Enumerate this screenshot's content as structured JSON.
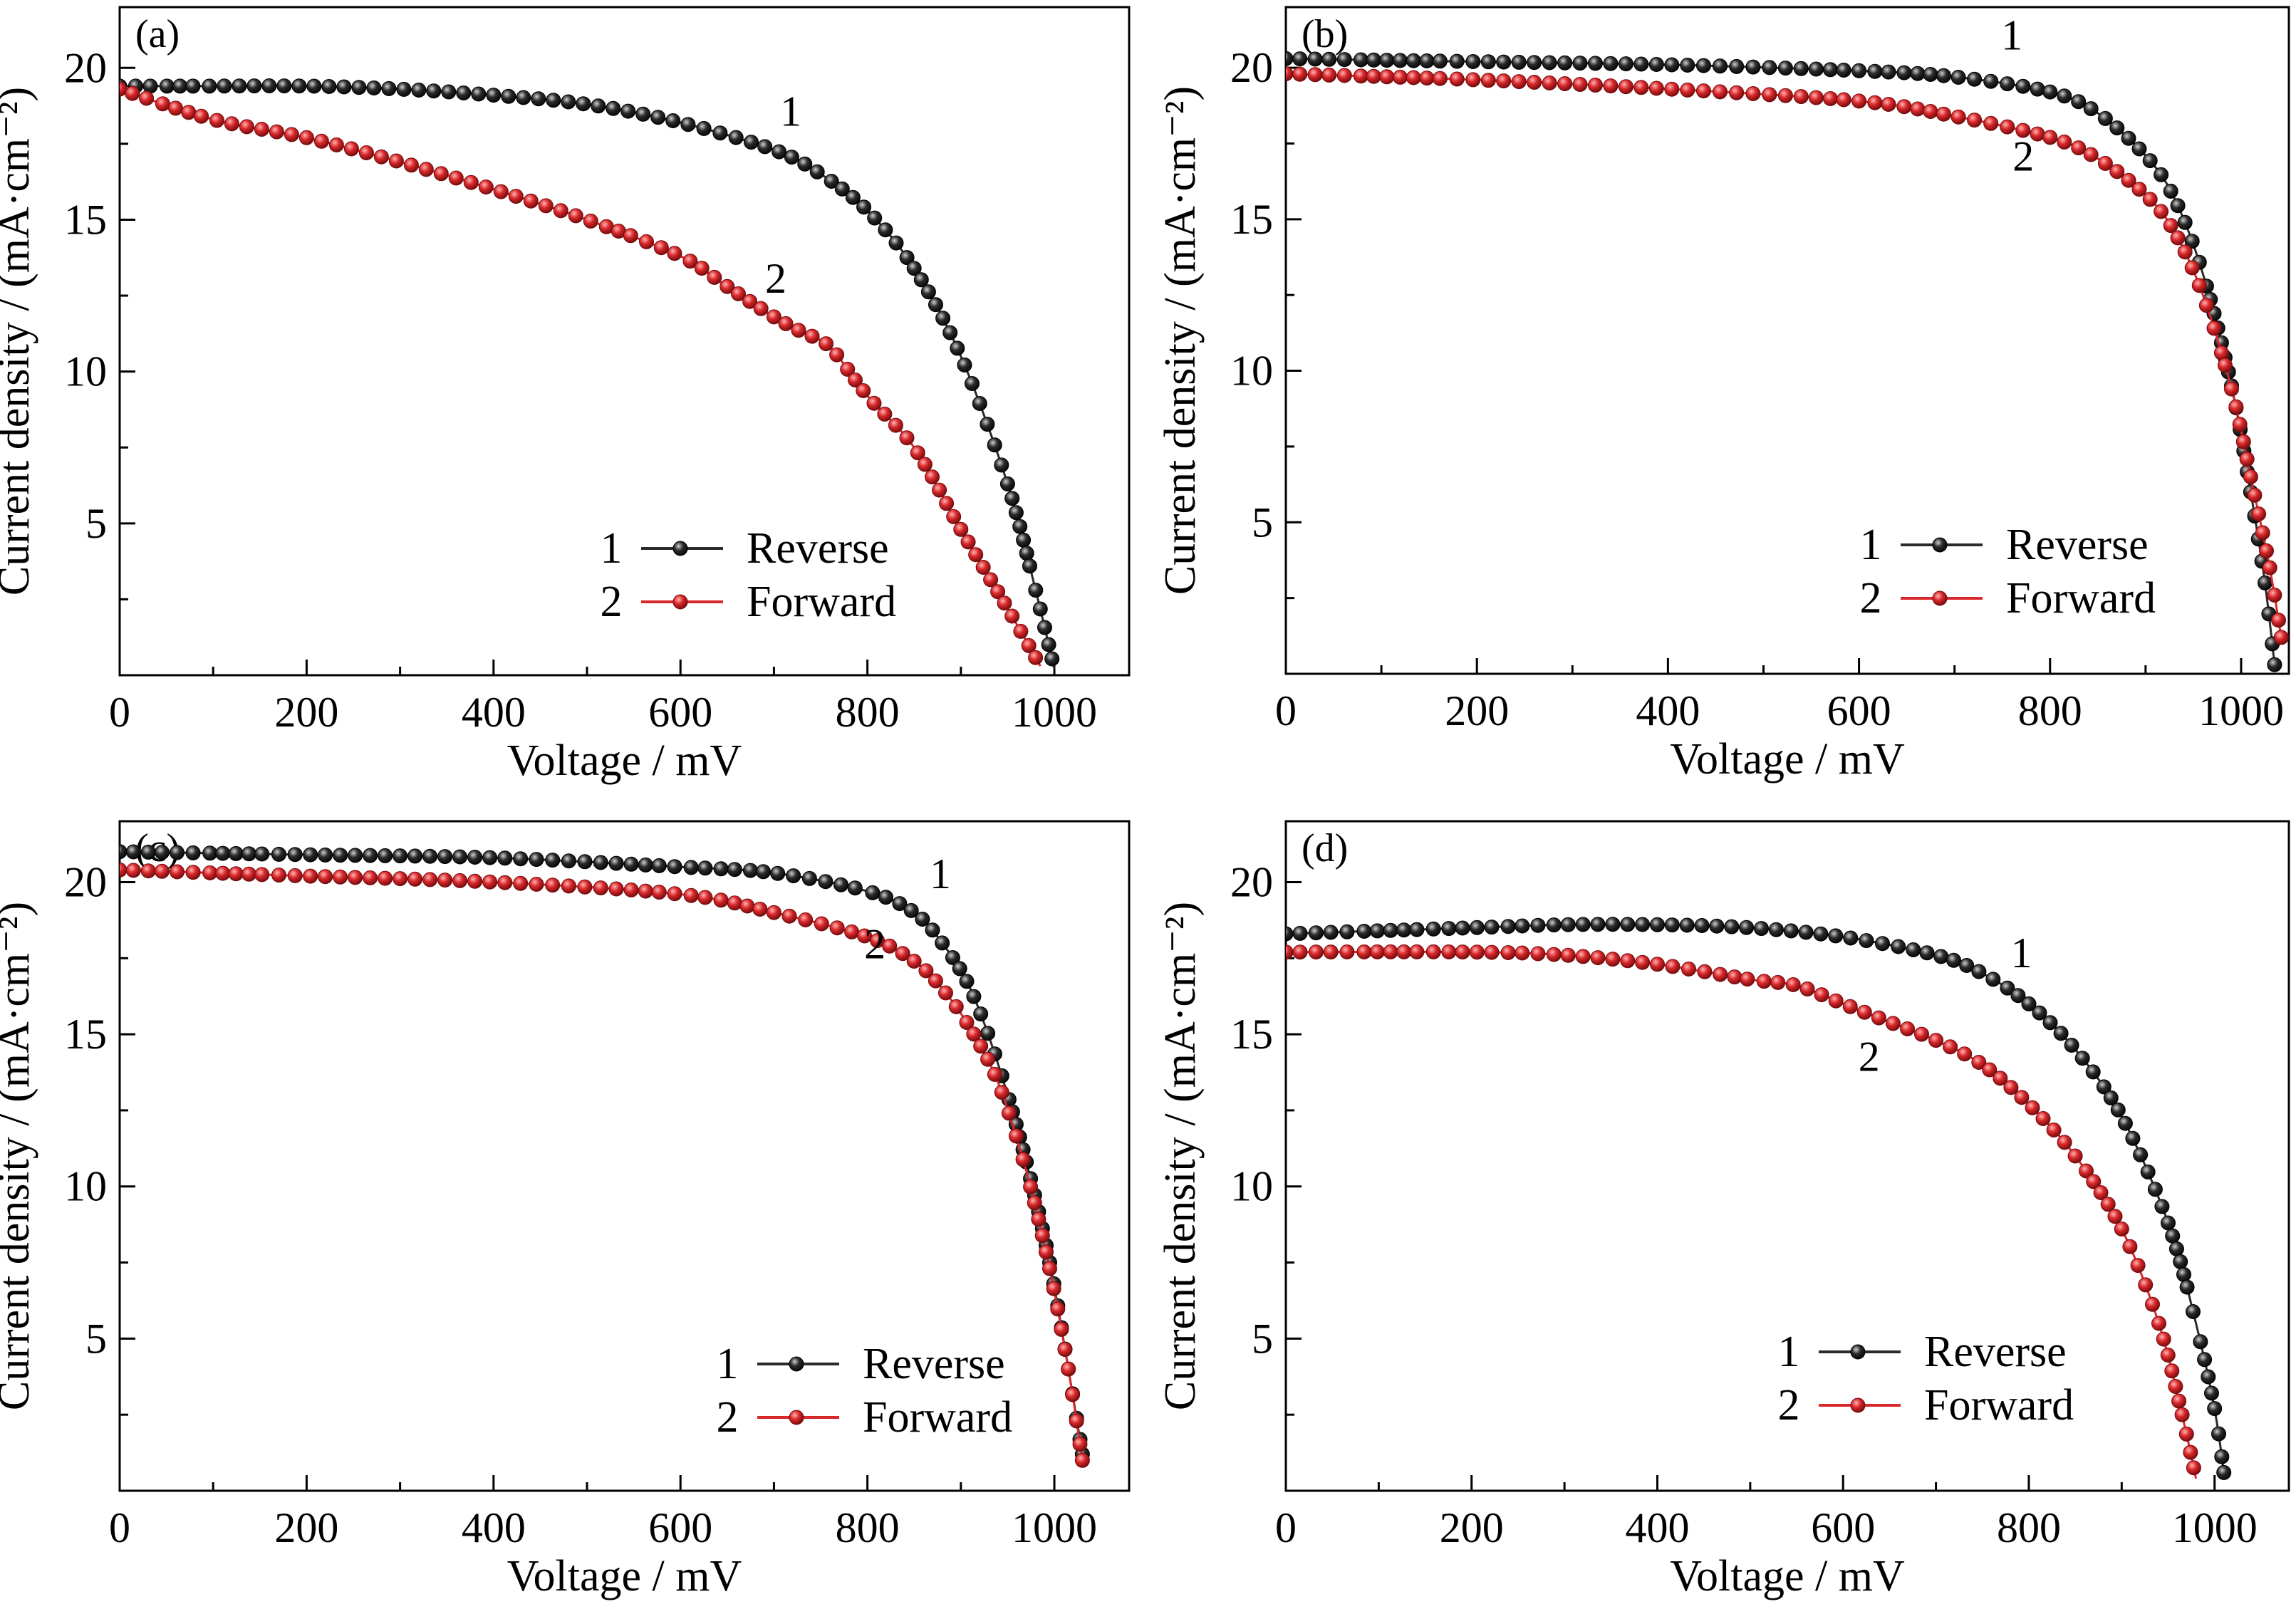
{
  "colors": {
    "reverse": "#2b2b2b",
    "forward": "#d9282b",
    "axis": "#000000"
  },
  "chart_data": [
    {
      "type": "line",
      "tag": "(a)",
      "xlabel": "Voltage / mV",
      "ylabel": "Current density / (mA·cm⁻²)",
      "xlim": [
        0,
        1080
      ],
      "ylim": [
        0,
        22
      ],
      "xticks": [
        0,
        200,
        400,
        600,
        800,
        1000
      ],
      "xtick_labels": [
        "0",
        "200",
        "400",
        "600",
        "800",
        "1000"
      ],
      "yticks": [
        5,
        10,
        15,
        20
      ],
      "ytick_labels": [
        "5",
        "10",
        "15",
        "20"
      ],
      "legend_placement": "bottom-right",
      "series": [
        {
          "name": "Reverse",
          "legend_num": "1",
          "curve_label": "1",
          "curve_label_at": [
            718,
            18.1
          ],
          "points": [
            [
              0,
              19.4
            ],
            [
              100,
              19.4
            ],
            [
              200,
              19.4
            ],
            [
              300,
              19.3
            ],
            [
              400,
              19.1
            ],
            [
              500,
              18.8
            ],
            [
              600,
              18.2
            ],
            [
              700,
              17.3
            ],
            [
              750,
              16.5
            ],
            [
              800,
              15.3
            ],
            [
              850,
              13.4
            ],
            [
              900,
              10.5
            ],
            [
              950,
              6.3
            ],
            [
              980,
              2.8
            ],
            [
              1000,
              0.2
            ]
          ]
        },
        {
          "name": "Forward",
          "legend_num": "2",
          "curve_label": "2",
          "curve_label_at": [
            702,
            12.6
          ],
          "points": [
            [
              0,
              19.3
            ],
            [
              100,
              18.3
            ],
            [
              200,
              17.7
            ],
            [
              300,
              16.9
            ],
            [
              400,
              16.0
            ],
            [
              500,
              15.0
            ],
            [
              600,
              13.8
            ],
            [
              650,
              12.8
            ],
            [
              700,
              11.8
            ],
            [
              730,
              11.3
            ],
            [
              760,
              10.8
            ],
            [
              800,
              9.2
            ],
            [
              850,
              7.5
            ],
            [
              900,
              4.8
            ],
            [
              950,
              2.2
            ],
            [
              985,
              0.3
            ]
          ]
        }
      ]
    },
    {
      "type": "line",
      "tag": "(b)",
      "xlabel": "Voltage / mV",
      "ylabel": "Current density / (mA·cm⁻²)",
      "xlim": [
        0,
        1050
      ],
      "ylim": [
        0,
        22
      ],
      "xticks": [
        0,
        200,
        400,
        600,
        800,
        1000
      ],
      "xtick_labels": [
        "0",
        "200",
        "400",
        "600",
        "800",
        "1000"
      ],
      "yticks": [
        5,
        10,
        15,
        20
      ],
      "ytick_labels": [
        "5",
        "10",
        "15",
        "20"
      ],
      "legend_placement": "bottom-right",
      "series": [
        {
          "name": "Reverse",
          "legend_num": "1",
          "curve_label": "1",
          "curve_label_at": [
            760,
            20.6
          ],
          "points": [
            [
              0,
              20.3
            ],
            [
              200,
              20.2
            ],
            [
              400,
              20.1
            ],
            [
              600,
              19.9
            ],
            [
              700,
              19.7
            ],
            [
              800,
              19.2
            ],
            [
              850,
              18.5
            ],
            [
              900,
              17.1
            ],
            [
              930,
              15.7
            ],
            [
              960,
              13.2
            ],
            [
              990,
              9.5
            ],
            [
              1010,
              6.0
            ],
            [
              1025,
              3.0
            ],
            [
              1035,
              0.3
            ]
          ]
        },
        {
          "name": "Forward",
          "legend_num": "2",
          "curve_label": "2",
          "curve_label_at": [
            772,
            16.6
          ],
          "points": [
            [
              0,
              19.8
            ],
            [
              200,
              19.6
            ],
            [
              400,
              19.3
            ],
            [
              600,
              18.9
            ],
            [
              700,
              18.4
            ],
            [
              800,
              17.7
            ],
            [
              850,
              17.0
            ],
            [
              900,
              15.8
            ],
            [
              930,
              14.6
            ],
            [
              960,
              12.5
            ],
            [
              990,
              9.4
            ],
            [
              1010,
              6.5
            ],
            [
              1030,
              3.5
            ],
            [
              1042,
              1.2
            ]
          ]
        }
      ]
    },
    {
      "type": "line",
      "tag": "(c)",
      "xlabel": "Voltage / mV",
      "ylabel": "Current density / (mA·cm⁻²)",
      "xlim": [
        0,
        1080
      ],
      "ylim": [
        0,
        22
      ],
      "xticks": [
        0,
        200,
        400,
        600,
        800,
        1000
      ],
      "xtick_labels": [
        "0",
        "200",
        "400",
        "600",
        "800",
        "1000"
      ],
      "yticks": [
        5,
        10,
        15,
        20
      ],
      "ytick_labels": [
        "5",
        "10",
        "15",
        "20"
      ],
      "legend_placement": "bottom-right",
      "series": [
        {
          "name": "Reverse",
          "legend_num": "1",
          "curve_label": "1",
          "curve_label_at": [
            878,
            19.8
          ],
          "points": [
            [
              0,
              21.0
            ],
            [
              200,
              20.9
            ],
            [
              400,
              20.8
            ],
            [
              600,
              20.5
            ],
            [
              700,
              20.3
            ],
            [
              800,
              19.7
            ],
            [
              850,
              19.0
            ],
            [
              880,
              18.0
            ],
            [
              910,
              16.5
            ],
            [
              940,
              14.0
            ],
            [
              970,
              10.8
            ],
            [
              995,
              7.5
            ],
            [
              1015,
              4.0
            ],
            [
              1030,
              1.2
            ]
          ]
        },
        {
          "name": "Forward",
          "legend_num": "2",
          "curve_label": "2",
          "curve_label_at": [
            808,
            17.5
          ],
          "points": [
            [
              0,
              20.4
            ],
            [
              200,
              20.2
            ],
            [
              400,
              20.0
            ],
            [
              600,
              19.6
            ],
            [
              700,
              19.0
            ],
            [
              800,
              18.2
            ],
            [
              850,
              17.4
            ],
            [
              880,
              16.5
            ],
            [
              910,
              15.2
            ],
            [
              940,
              13.4
            ],
            [
              970,
              10.5
            ],
            [
              995,
              7.3
            ],
            [
              1015,
              4.0
            ],
            [
              1030,
              1.0
            ]
          ]
        }
      ]
    },
    {
      "type": "line",
      "tag": "(d)",
      "xlabel": "Voltage / mV",
      "ylabel": "Current density / (mA·cm⁻²)",
      "xlim": [
        0,
        1080
      ],
      "ylim": [
        0,
        22
      ],
      "xticks": [
        0,
        200,
        400,
        600,
        800,
        1000
      ],
      "xtick_labels": [
        "0",
        "200",
        "400",
        "600",
        "800",
        "1000"
      ],
      "yticks": [
        5,
        10,
        15,
        20
      ],
      "ytick_labels": [
        "5",
        "10",
        "15",
        "20"
      ],
      "legend_placement": "bottom-right",
      "series": [
        {
          "name": "Reverse",
          "legend_num": "1",
          "curve_label": "1",
          "curve_label_at": [
            792,
            17.2
          ],
          "points": [
            [
              0,
              18.3
            ],
            [
              200,
              18.5
            ],
            [
              300,
              18.6
            ],
            [
              400,
              18.6
            ],
            [
              500,
              18.5
            ],
            [
              600,
              18.2
            ],
            [
              700,
              17.6
            ],
            [
              750,
              17.0
            ],
            [
              800,
              16.0
            ],
            [
              850,
              14.5
            ],
            [
              900,
              12.3
            ],
            [
              950,
              8.8
            ],
            [
              980,
              5.5
            ],
            [
              1000,
              2.7
            ],
            [
              1010,
              0.6
            ]
          ]
        },
        {
          "name": "Forward",
          "legend_num": "2",
          "curve_label": "2",
          "curve_label_at": [
            628,
            13.8
          ],
          "points": [
            [
              0,
              17.7
            ],
            [
              200,
              17.7
            ],
            [
              300,
              17.6
            ],
            [
              400,
              17.3
            ],
            [
              500,
              16.8
            ],
            [
              550,
              16.6
            ],
            [
              600,
              16.0
            ],
            [
              650,
              15.4
            ],
            [
              700,
              14.8
            ],
            [
              750,
              14.0
            ],
            [
              800,
              12.7
            ],
            [
              850,
              11.0
            ],
            [
              900,
              8.6
            ],
            [
              940,
              5.5
            ],
            [
              965,
              2.5
            ],
            [
              980,
              0.4
            ]
          ]
        }
      ]
    }
  ]
}
